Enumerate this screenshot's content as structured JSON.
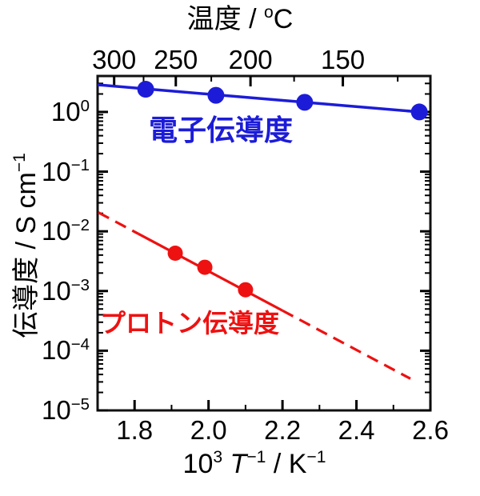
{
  "figure": {
    "background": "#ffffff"
  },
  "chart_data": {
    "type": "line",
    "description": "Arrhenius plot of conductivity vs reciprocal temperature, log y-scale",
    "top_axis": {
      "title_text": "温度 / °C",
      "title_parts": [
        {
          "t": "温度 / "
        },
        {
          "t": "o",
          "sup": true
        },
        {
          "t": "C"
        }
      ],
      "major_ticks_celsius": [
        300,
        250,
        200,
        150
      ],
      "minor_ticks_celsius": [
        275,
        225,
        175,
        125
      ]
    },
    "x_axis": {
      "title_text": "10³ T⁻¹ / K⁻¹",
      "title_parts": [
        {
          "t": "10"
        },
        {
          "t": "3",
          "sup": true
        },
        {
          "t": " "
        },
        {
          "t": "T",
          "italic": true
        },
        {
          "t": "−1",
          "sup": true
        },
        {
          "t": " / K"
        },
        {
          "t": "−1",
          "sup": true
        }
      ],
      "min": 1.7,
      "max": 2.6,
      "major_ticks": [
        1.8,
        2.0,
        2.2,
        2.4,
        2.6
      ],
      "minor_ticks": [
        1.9,
        2.1,
        2.3,
        2.5
      ],
      "tick_decimals": 1
    },
    "y_axis": {
      "title_text": "伝導度 / S cm⁻¹",
      "title_parts": [
        {
          "t": "伝導度 / S cm"
        },
        {
          "t": "−1",
          "sup": true
        }
      ],
      "scale": "log",
      "min": 1e-05,
      "max": 4.0,
      "label_base": "10",
      "label_decades": [
        0,
        -1,
        -2,
        -3,
        -4,
        -5
      ],
      "label_exponents": [
        "0",
        "−1",
        "−2",
        "−3",
        "−4",
        "−5"
      ]
    },
    "frame_color": "#111111",
    "series": [
      {
        "id": "electronic",
        "label": "電子伝導度",
        "color": "#1c1cd8",
        "marker": "circle",
        "marker_radius": 10.5,
        "line_width": 3.5,
        "points": [
          {
            "x": 1.83,
            "y": 2.4
          },
          {
            "x": 2.02,
            "y": 1.9
          },
          {
            "x": 2.26,
            "y": 1.45
          },
          {
            "x": 2.57,
            "y": 1.0
          }
        ],
        "segments": [
          {
            "x1": 1.7,
            "y1": 2.85,
            "x2": 2.57,
            "y2": 1.0,
            "dashed": false
          }
        ]
      },
      {
        "id": "proton",
        "label": "プロトン伝導度",
        "color": "#ee1111",
        "marker": "circle",
        "marker_radius": 9.5,
        "line_width": 3.2,
        "points": [
          {
            "x": 1.91,
            "y": 0.0043
          },
          {
            "x": 1.99,
            "y": 0.0025
          },
          {
            "x": 2.1,
            "y": 0.00105
          }
        ],
        "segments": [
          {
            "x1": 1.702,
            "y1": 0.0207,
            "x2": 1.81,
            "y2": 0.0091,
            "dashed": true
          },
          {
            "x1": 1.81,
            "y1": 0.0091,
            "x2": 2.2,
            "y2": 0.00047,
            "dashed": false
          },
          {
            "x1": 2.2,
            "y1": 0.00047,
            "x2": 2.546,
            "y2": 3.4e-05,
            "dashed": true
          }
        ]
      }
    ]
  }
}
